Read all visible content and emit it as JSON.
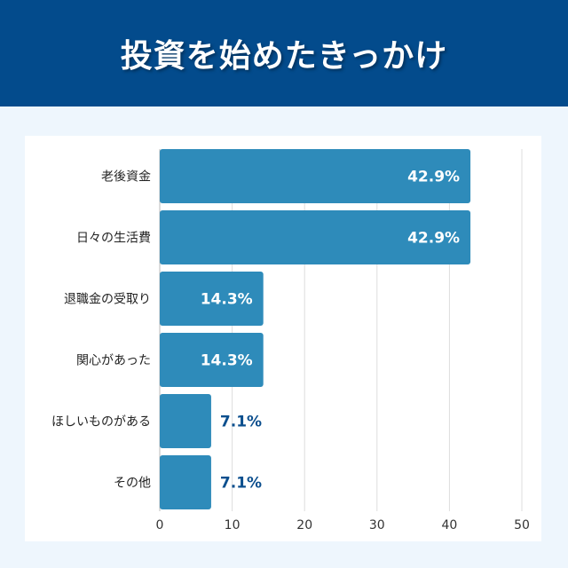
{
  "chart_data": {
    "type": "bar",
    "orientation": "horizontal",
    "title": "投資を始めたきっかけ",
    "categories": [
      "老後資金",
      "日々の生活費",
      "退職金の受取り",
      "関心があった",
      "ほしいものがある",
      "その他"
    ],
    "values": [
      42.9,
      42.9,
      14.3,
      14.3,
      7.1,
      7.1
    ],
    "labels": [
      "42.9%",
      "42.9%",
      "14.3%",
      "14.3%",
      "7.1%",
      "7.1%"
    ],
    "xlim": [
      0,
      50
    ],
    "xticks": [
      "0",
      "10",
      "20",
      "30",
      "40",
      "50"
    ],
    "grid": true,
    "colors": {
      "bar": "#2e8bba",
      "header": "#034b8c",
      "label_out": "#0c4f8e"
    }
  }
}
